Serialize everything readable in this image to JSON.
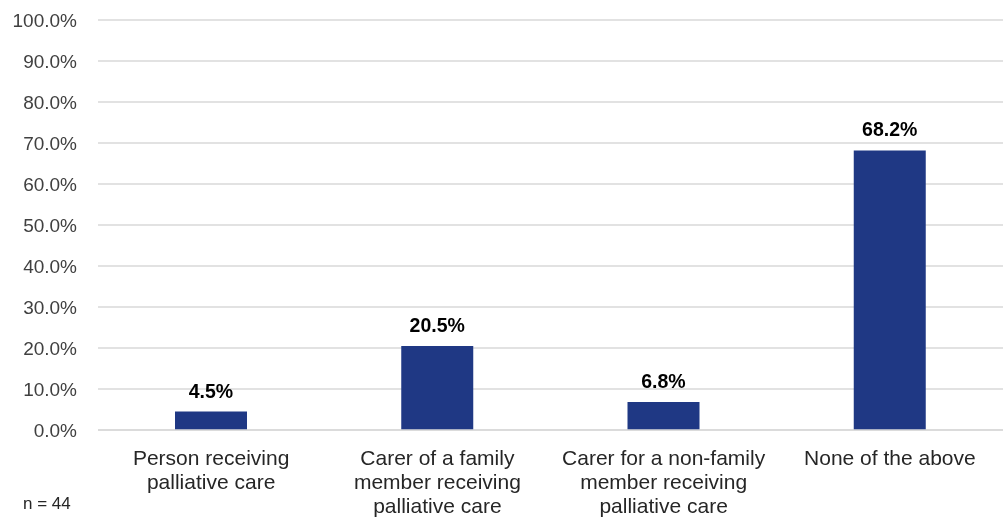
{
  "chart_data": {
    "type": "bar",
    "categories": [
      "Person receiving palliative care",
      "Carer of a family member receiving palliative care",
      "Carer for a non-family member receiving palliative care",
      "None of the above"
    ],
    "values": [
      4.5,
      20.5,
      6.8,
      68.2
    ],
    "value_labels": [
      "4.5%",
      "20.5%",
      "6.8%",
      "68.2%"
    ],
    "color": "#1f3884",
    "ylim": [
      0,
      100
    ],
    "yticks": [
      {
        "value": 0,
        "label": "0.0%"
      },
      {
        "value": 10,
        "label": "10.0%"
      },
      {
        "value": 20,
        "label": "20.0%"
      },
      {
        "value": 30,
        "label": "30.0%"
      },
      {
        "value": 40,
        "label": "40.0%"
      },
      {
        "value": 50,
        "label": "50.0%"
      },
      {
        "value": 60,
        "label": "60.0%"
      },
      {
        "value": 70,
        "label": "70.0%"
      },
      {
        "value": 80,
        "label": "80.0%"
      },
      {
        "value": 90,
        "label": "90.0%"
      },
      {
        "value": 100,
        "label": "100.0%"
      }
    ],
    "grid": "y",
    "annotations": [
      "n = 44"
    ]
  }
}
